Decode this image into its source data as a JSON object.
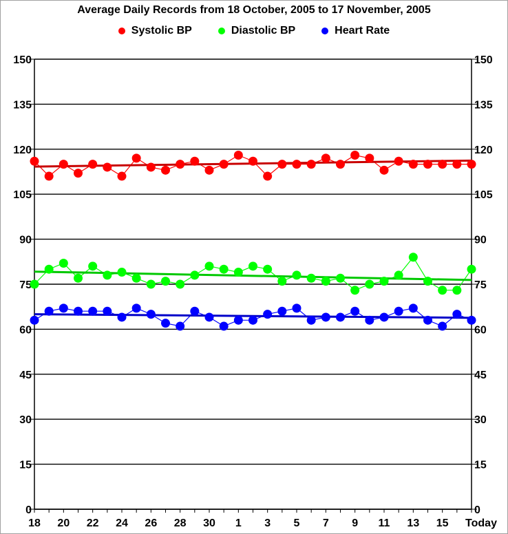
{
  "chart_data": {
    "type": "line",
    "title": "Average Daily Records from 18 October, 2005 to 17 November, 2005",
    "categories": [
      "18",
      "19",
      "20",
      "21",
      "22",
      "23",
      "24",
      "25",
      "26",
      "27",
      "28",
      "29",
      "30",
      "31",
      "1",
      "2",
      "3",
      "4",
      "5",
      "6",
      "7",
      "8",
      "9",
      "10",
      "11",
      "12",
      "13",
      "14",
      "15",
      "16",
      "Today"
    ],
    "x_tick_labels": [
      "18",
      "20",
      "22",
      "24",
      "26",
      "28",
      "30",
      "1",
      "3",
      "5",
      "7",
      "9",
      "11",
      "13",
      "15",
      "Today"
    ],
    "y_ticks": [
      0,
      15,
      30,
      45,
      60,
      75,
      90,
      105,
      120,
      135,
      150
    ],
    "ylim": [
      0,
      150
    ],
    "grid": true,
    "legend_position": "top",
    "series": [
      {
        "name": "Systolic BP",
        "color": "#ff0000",
        "trend_color": "#c80000",
        "values": [
          116,
          111,
          115,
          112,
          115,
          114,
          111,
          117,
          114,
          113,
          115,
          116,
          113,
          115,
          118,
          116,
          111,
          115,
          115,
          115,
          117,
          115,
          118,
          117,
          113,
          116,
          115,
          115,
          115,
          115,
          115
        ],
        "trend": [
          114.2,
          116.2
        ]
      },
      {
        "name": "Diastolic BP",
        "color": "#00ff00",
        "trend_color": "#00c800",
        "values": [
          75,
          80,
          82,
          77,
          81,
          78,
          79,
          77,
          75,
          76,
          75,
          78,
          81,
          80,
          79,
          81,
          80,
          76,
          78,
          77,
          76,
          77,
          73,
          75,
          76,
          78,
          84,
          76,
          73,
          73,
          80
        ],
        "trend": [
          79.2,
          76.4
        ]
      },
      {
        "name": "Heart Rate",
        "color": "#0000ff",
        "trend_color": "#0000c8",
        "values": [
          63,
          66,
          67,
          66,
          66,
          66,
          64,
          67,
          65,
          62,
          61,
          66,
          64,
          61,
          63,
          63,
          65,
          66,
          67,
          63,
          64,
          64,
          66,
          63,
          64,
          66,
          67,
          63,
          61,
          65,
          63
        ],
        "trend": [
          65.0,
          63.8
        ]
      }
    ]
  }
}
